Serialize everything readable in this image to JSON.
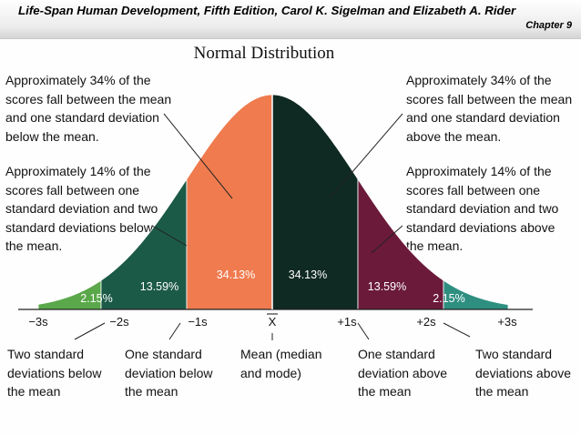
{
  "header": {
    "title": "Life-Span Human Development, Fifth Edition, Carol K. Sigelman and Elizabeth A. Rider",
    "chapter": "Chapter 9"
  },
  "slide_title": "Normal Distribution",
  "notes": {
    "left_34": "Approximately 34% of the\nscores fall between the mean\nand one standard deviation\nbelow the mean.",
    "left_14": "Approximately 14% of the\nscores fall between one\nstandard deviation and two\nstandard deviations below\nthe mean.",
    "right_34": "Approximately 34% of the\nscores fall between the mean\nand one standard deviation\nabove the mean.",
    "right_14": "Approximately 14% of the\nscores fall between one\nstandard deviation and two\nstandard deviations above\nthe mean."
  },
  "segments": [
    {
      "label": "2.15%",
      "color": "#5aa84a"
    },
    {
      "label": "13.59%",
      "color": "#1c5a48"
    },
    {
      "label": "34.13%",
      "color": "#ef7b4e"
    },
    {
      "label": "34.13%",
      "color": "#0f2a22"
    },
    {
      "label": "13.59%",
      "color": "#6b1a3a"
    },
    {
      "label": "2.15%",
      "color": "#2e8f80"
    }
  ],
  "ticks": [
    "−3s",
    "−2s",
    "−1s",
    "X",
    "+1s",
    "+2s",
    "+3s"
  ],
  "bottom_labels": {
    "two_below": "Two standard\ndeviations below\nthe mean",
    "one_below": "One standard\ndeviation below\nthe mean",
    "mean": "Mean (median\nand mode)",
    "one_above": "One standard\ndeviation above\nthe mean",
    "two_above": "Two standard\ndeviations above\nthe mean"
  }
}
